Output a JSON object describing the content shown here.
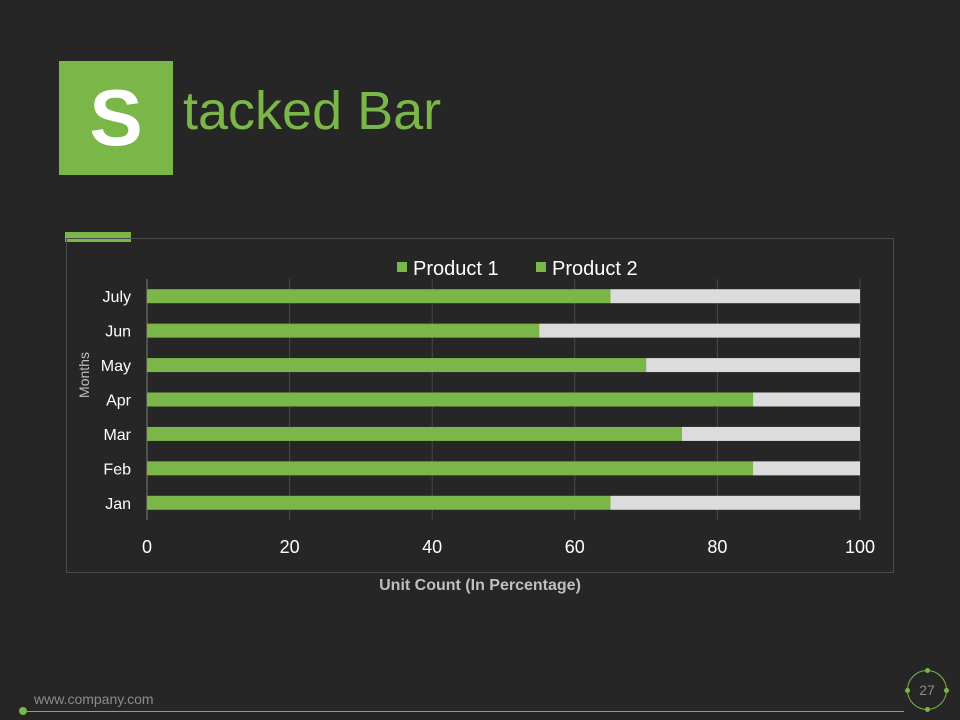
{
  "slide": {
    "title_initial": "S",
    "title_rest": "tacked Bar",
    "footer_url": "www.company.com",
    "page_number": "27"
  },
  "colors": {
    "background": "#262626",
    "accent": "#7ab648",
    "product2": "#dcdcdc",
    "axis_text": "#ffffff",
    "axis_label_text": "#bfbfbf"
  },
  "chart_data": {
    "type": "bar",
    "orientation": "horizontal",
    "stacked": true,
    "title": "",
    "categories": [
      "Jan",
      "Feb",
      "Mar",
      "Apr",
      "May",
      "Jun",
      "July"
    ],
    "series": [
      {
        "name": "Product 1",
        "color": "#7ab648",
        "values": [
          65,
          85,
          75,
          85,
          70,
          55,
          65
        ]
      },
      {
        "name": "Product 2",
        "color": "#dcdcdc",
        "values": [
          35,
          15,
          25,
          15,
          30,
          45,
          35
        ]
      }
    ],
    "xlabel": "Unit Count (In Percentage)",
    "ylabel": "Months",
    "xlim": [
      0,
      100
    ],
    "xticks": [
      "0",
      "20",
      "40",
      "60",
      "80",
      "100"
    ],
    "grid": true,
    "legend_position": "top"
  }
}
